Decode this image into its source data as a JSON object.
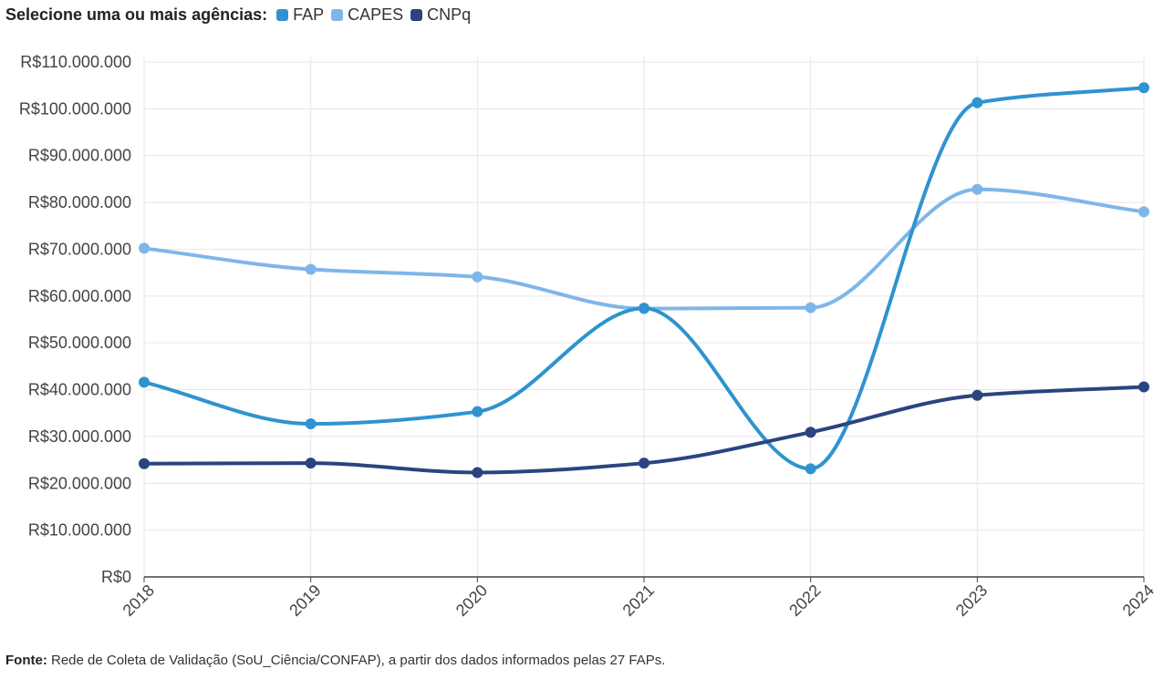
{
  "legend": {
    "title": "Selecione uma ou mais agências:",
    "items": [
      {
        "label": "FAP",
        "color": "#2f93cf"
      },
      {
        "label": "CAPES",
        "color": "#7fb6e9"
      },
      {
        "label": "CNPq",
        "color": "#2a4480"
      }
    ]
  },
  "footer": {
    "label": "Fonte:",
    "text": "Rede de Coleta de Validação (SoU_Ciência/CONFAP), a partir dos dados informados pelas 27 FAPs."
  },
  "chart_data": {
    "type": "line",
    "x": [
      "2018",
      "2019",
      "2020",
      "2021",
      "2022",
      "2023",
      "2024"
    ],
    "ylim": [
      0,
      110000000
    ],
    "yticks": [
      0,
      10000000,
      20000000,
      30000000,
      40000000,
      50000000,
      60000000,
      70000000,
      80000000,
      90000000,
      100000000,
      110000000
    ],
    "ytick_labels": [
      "R$0",
      "R$10.000.000",
      "R$20.000.000",
      "R$30.000.000",
      "R$40.000.000",
      "R$50.000.000",
      "R$60.000.000",
      "R$70.000.000",
      "R$80.000.000",
      "R$90.000.000",
      "R$100.000.000",
      "R$110.000.000"
    ],
    "grid": true,
    "series": [
      {
        "name": "CAPES",
        "color": "#7fb6e9",
        "values": [
          70200000,
          65700000,
          64100000,
          57300000,
          57500000,
          82800000,
          78000000
        ]
      },
      {
        "name": "FAP",
        "color": "#2f93cf",
        "values": [
          41600000,
          32700000,
          35300000,
          57400000,
          23100000,
          101300000,
          104500000
        ]
      },
      {
        "name": "CNPq",
        "color": "#2a4480",
        "values": [
          24200000,
          24300000,
          22300000,
          24300000,
          30900000,
          38800000,
          40600000
        ]
      }
    ]
  }
}
